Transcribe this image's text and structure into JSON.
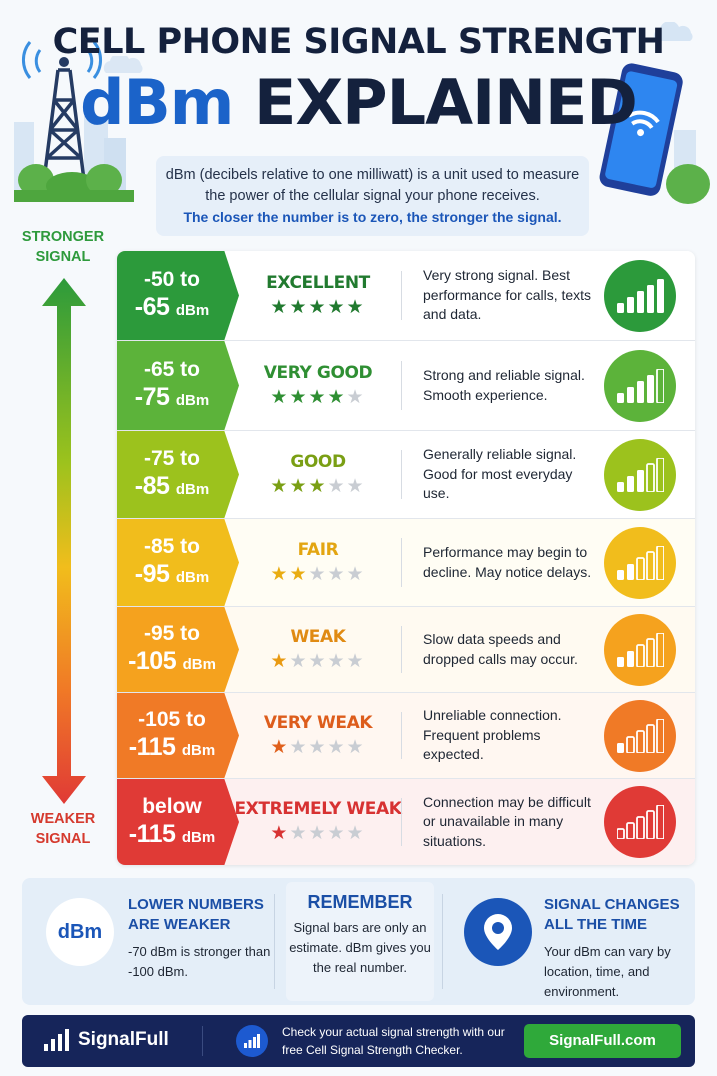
{
  "header": {
    "title_line1": "CELL PHONE SIGNAL STRENGTH",
    "title_dbm": "dBm",
    "title_explained": "EXPLAINED",
    "intro": "dBm (decibels relative to one milliwatt) is a unit used to measure the power of the cellular signal your phone receives.",
    "intro_highlight": "The closer the number is to zero, the stronger the signal."
  },
  "side": {
    "top_line1": "STRONGER",
    "top_line2": "SIGNAL",
    "bottom_line1": "WEAKER",
    "bottom_line2": "SIGNAL"
  },
  "rows": [
    {
      "r1": "-50 to",
      "r2": "-65",
      "unit": "dBm",
      "label": "EXCELLENT",
      "stars": 5,
      "desc": "Very strong signal. Best performance for calls, texts and data.",
      "color": "#2c9a3b",
      "label_color": "#217a2f",
      "star_color": "#217a2f",
      "bars": 5,
      "row_bg": "#ffffff"
    },
    {
      "r1": "-65 to",
      "r2": "-75",
      "unit": "dBm",
      "label": "VERY GOOD",
      "stars": 4,
      "desc": "Strong and reliable signal. Smooth experience.",
      "color": "#5cb33a",
      "label_color": "#2f8f33",
      "star_color": "#2f8f33",
      "bars": 4,
      "row_bg": "#ffffff"
    },
    {
      "r1": "-75 to",
      "r2": "-85",
      "unit": "dBm",
      "label": "GOOD",
      "stars": 3,
      "desc": "Generally reliable signal. Good for most everyday use.",
      "color": "#9cc21d",
      "label_color": "#7a9f14",
      "star_color": "#7a9f14",
      "bars": 3,
      "row_bg": "#ffffff"
    },
    {
      "r1": "-85 to",
      "r2": "-95",
      "unit": "dBm",
      "label": "FAIR",
      "stars": 2,
      "desc": "Performance may begin to decline. May notice delays.",
      "color": "#f1bd1c",
      "label_color": "#e3a511",
      "star_color": "#e9ac12",
      "bars": 2,
      "row_bg": "#fffdf4"
    },
    {
      "r1": "-95 to",
      "r2": "-105",
      "unit": "dBm",
      "label": "WEAK",
      "stars": 1,
      "desc": "Slow data speeds and dropped calls may occur.",
      "color": "#f5a21e",
      "label_color": "#e08a12",
      "star_color": "#e99a12",
      "bars": 2,
      "row_bg": "#fffaf1"
    },
    {
      "r1": "-105 to",
      "r2": "-115",
      "unit": "dBm",
      "label": "VERY WEAK",
      "stars": 1,
      "desc": "Unreliable connection. Frequent problems expected.",
      "color": "#f07a26",
      "label_color": "#dd5d1c",
      "star_color": "#e0601c",
      "bars": 1,
      "row_bg": "#fff7f1"
    },
    {
      "r1": "below",
      "r2": "-115",
      "unit": "dBm",
      "label": "EXTREMELY WEAK",
      "stars": 1,
      "desc": "Connection may be difficult or unavailable in many situations.",
      "color": "#e03a36",
      "label_color": "#d73232",
      "star_color": "#d73232",
      "bars": 0,
      "row_bg": "#fdf0f0"
    }
  ],
  "info": {
    "col1_icon": "dBm",
    "col1_title": "LOWER NUMBERS ARE WEAKER",
    "col1_text": "-70 dBm is stronger than -100 dBm.",
    "col2_title": "REMEMBER",
    "col2_text": "Signal bars are only an estimate. dBm gives you the real number.",
    "col3_title": "SIGNAL CHANGES ALL THE TIME",
    "col3_text": "Your dBm can vary by location, time, and environment.",
    "col3_icon": "location-pin-icon"
  },
  "footer": {
    "brand": "SignalFull",
    "text": "Check your actual signal strength with our free Cell Signal Strength Checker.",
    "button": "SignalFull.com"
  }
}
